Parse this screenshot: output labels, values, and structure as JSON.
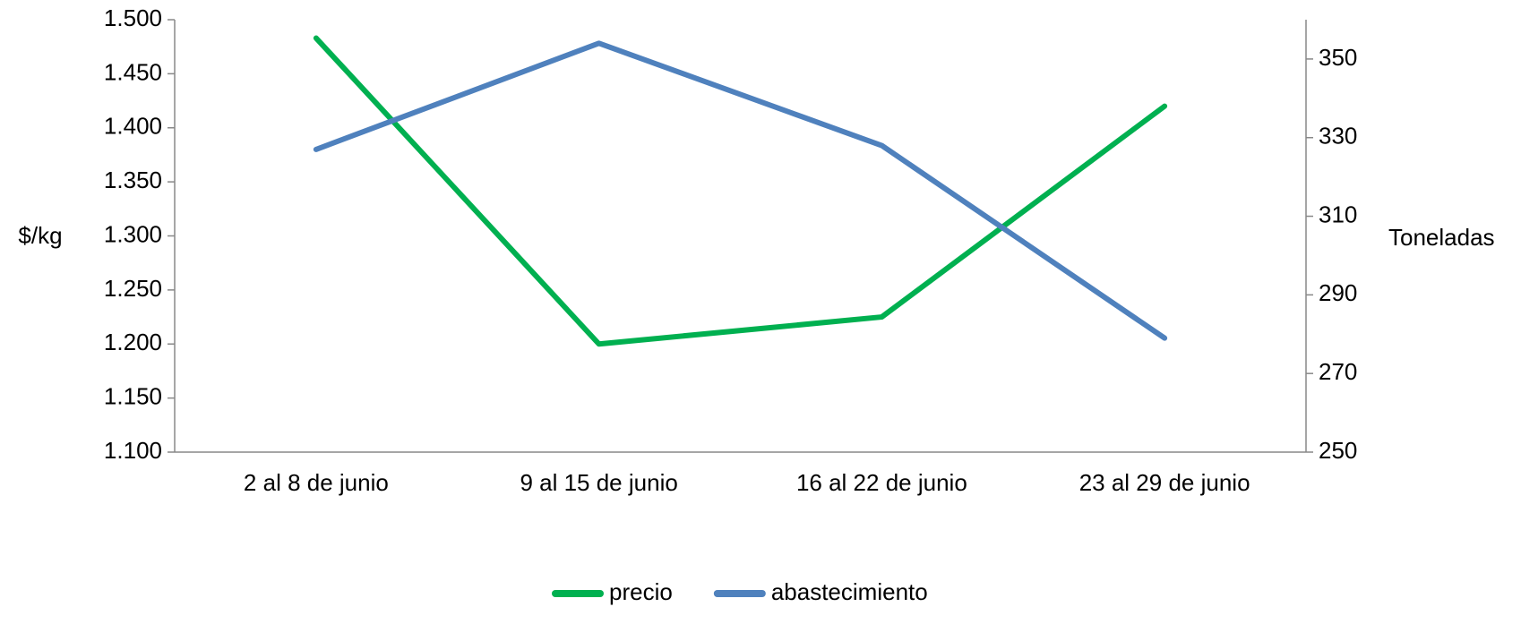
{
  "chart_data": {
    "type": "line",
    "y_label": "$/kg",
    "y2_label": "Toneladas",
    "categories": [
      "2 al 8 de junio",
      "9 al 15 de junio",
      "16 al 22 de junio",
      "23 al 29 de junio"
    ],
    "series": [
      {
        "name": "precio",
        "color": "#00b050",
        "values": [
          1483,
          1200,
          1225,
          1420
        ]
      },
      {
        "name": "abastecimiento",
        "color": "#4f81bd",
        "axis": "y2",
        "values": [
          327,
          354,
          328,
          279
        ]
      }
    ],
    "ylim": [
      1100,
      1500
    ],
    "yticks": [
      {
        "value": 1100,
        "label": "1.100"
      },
      {
        "value": 1150,
        "label": "1.150"
      },
      {
        "value": 1200,
        "label": "1.200"
      },
      {
        "value": 1250,
        "label": "1.250"
      },
      {
        "value": 1300,
        "label": "1.300"
      },
      {
        "value": 1350,
        "label": "1.350"
      },
      {
        "value": 1400,
        "label": "1.400"
      },
      {
        "value": 1450,
        "label": "1.450"
      },
      {
        "value": 1500,
        "label": "1.500"
      }
    ],
    "y2lim": [
      250,
      360
    ],
    "y2ticks": [
      250,
      270,
      290,
      310,
      330,
      350
    ],
    "legend": "bottom"
  }
}
